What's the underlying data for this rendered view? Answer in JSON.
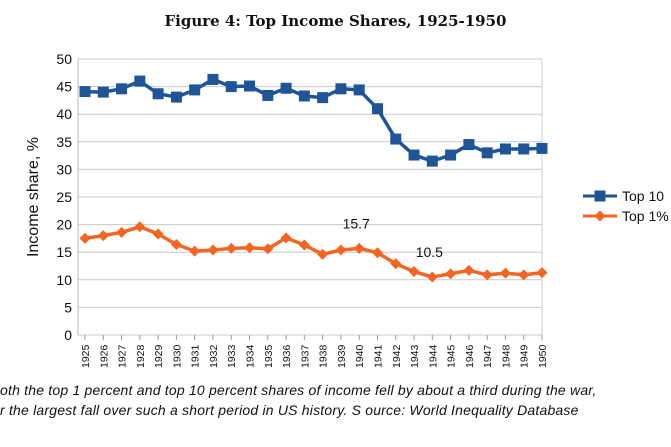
{
  "chart_data": {
    "type": "line",
    "title": "Figure 4: Top Income Shares, 1925-1950",
    "ylabel": "Income share, %",
    "xlabel": "",
    "ylim": [
      0,
      50
    ],
    "yticks": [
      0,
      5,
      10,
      15,
      20,
      25,
      30,
      35,
      40,
      45,
      50
    ],
    "grid": true,
    "legend_position": "right",
    "x": [
      1925,
      1926,
      1927,
      1928,
      1929,
      1930,
      1931,
      1932,
      1933,
      1934,
      1935,
      1936,
      1937,
      1938,
      1939,
      1940,
      1941,
      1942,
      1943,
      1944,
      1945,
      1946,
      1947,
      1948,
      1949,
      1950
    ],
    "series": [
      {
        "name": "Top 10",
        "color": "#1f5597",
        "marker": "square",
        "values": [
          44.1,
          44.0,
          44.6,
          46.0,
          43.7,
          43.1,
          44.4,
          46.3,
          45.0,
          45.1,
          43.4,
          44.7,
          43.3,
          43.0,
          44.6,
          44.4,
          41.0,
          35.5,
          32.6,
          31.5,
          32.6,
          34.5,
          33.0,
          33.7,
          33.7,
          33.8
        ]
      },
      {
        "name": "Top 1%",
        "color": "#f26522",
        "marker": "diamond",
        "values": [
          17.5,
          18.0,
          18.6,
          19.6,
          18.3,
          16.4,
          15.2,
          15.4,
          15.7,
          15.8,
          15.6,
          17.6,
          16.3,
          14.6,
          15.4,
          15.7,
          14.9,
          12.9,
          11.5,
          10.5,
          11.1,
          11.7,
          10.9,
          11.2,
          10.9,
          11.3
        ]
      }
    ],
    "annotations": [
      {
        "text": "15.7",
        "x": 1940,
        "y": 15.7
      },
      {
        "text": "10.5",
        "x": 1944,
        "y": 10.5
      }
    ]
  },
  "caption": {
    "line1": "oth the top 1 percent and top 10 percent shares of income fell by about a third during the war,",
    "line2": "r the largest fall over such a short period in US history. S ource: World Inequality Database"
  }
}
